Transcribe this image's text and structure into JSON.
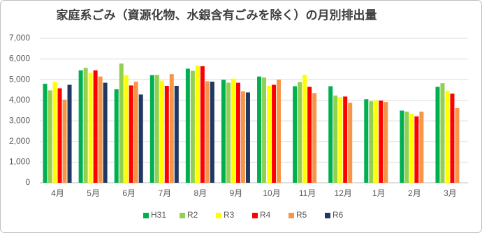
{
  "chart_data": {
    "type": "bar",
    "title": "家庭系ごみ（資源化物、水銀含有ごみを除く）の月別排出量",
    "categories": [
      "4月",
      "5月",
      "6月",
      "7月",
      "8月",
      "9月",
      "10月",
      "11月",
      "12月",
      "1月",
      "2月",
      "3月"
    ],
    "series": [
      {
        "name": "H31",
        "color": "#00b050",
        "values": [
          4800,
          5450,
          4530,
          5220,
          5530,
          4990,
          5150,
          4680,
          4680,
          4050,
          3500,
          4650
        ]
      },
      {
        "name": "R2",
        "color": "#92d050",
        "values": [
          4480,
          5570,
          5780,
          5230,
          5430,
          4850,
          5100,
          4880,
          4230,
          3950,
          3450,
          4830
        ]
      },
      {
        "name": "R3",
        "color": "#ffff00",
        "values": [
          4900,
          5330,
          5220,
          4950,
          5680,
          5050,
          4700,
          5230,
          4150,
          4000,
          3350,
          4450
        ]
      },
      {
        "name": "R4",
        "color": "#ff0000",
        "values": [
          4580,
          5450,
          4720,
          4700,
          5650,
          4850,
          4750,
          4650,
          4180,
          3980,
          3220,
          4320
        ]
      },
      {
        "name": "R5",
        "color": "#f79646",
        "values": [
          4030,
          5150,
          4900,
          5270,
          4920,
          4430,
          5000,
          4350,
          3880,
          3920,
          3450,
          3620
        ]
      },
      {
        "name": "R6",
        "color": "#1f3864",
        "values": [
          4750,
          4850,
          4280,
          4700,
          4900,
          4380,
          null,
          null,
          null,
          null,
          null,
          null
        ]
      }
    ],
    "ylim": [
      0,
      7000
    ],
    "yticks": [
      0,
      {
        "value": 1000,
        "label": "1,000"
      },
      {
        "value": 2000,
        "label": "2,000"
      },
      {
        "value": 3000,
        "label": "3,000"
      },
      {
        "value": 4000,
        "label": "4,000"
      },
      {
        "value": 5000,
        "label": "5,000"
      },
      {
        "value": 6000,
        "label": "6,000"
      },
      {
        "value": 7000,
        "label": "7,000"
      }
    ],
    "grid": true
  }
}
